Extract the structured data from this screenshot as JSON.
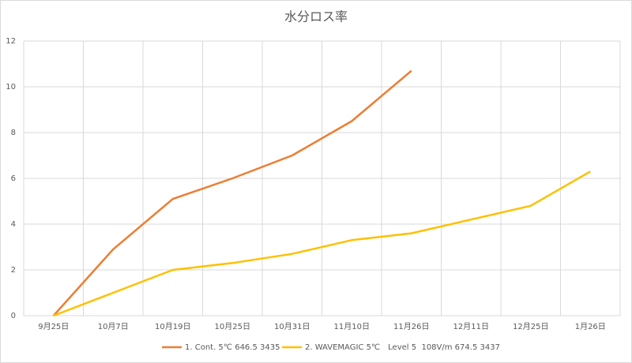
{
  "chart_data": {
    "type": "line",
    "title": "水分ロス率",
    "categories": [
      "9月25日",
      "10月7日",
      "10月19日",
      "10月25日",
      "10月31日",
      "11月10日",
      "11月26日",
      "12月11日",
      "12月25日",
      "1月26日"
    ],
    "series": [
      {
        "name": "1. Cont. 5℃ 646.5 3435",
        "color": "#ed7d31",
        "values": [
          0,
          2.9,
          5.1,
          6.0,
          7.0,
          8.5,
          10.7,
          null,
          null,
          null
        ]
      },
      {
        "name": "2. WAVEMAGIC 5℃　Level 5  108V/m 674.5 3437",
        "color": "#ffc000",
        "values": [
          0,
          1.0,
          2.0,
          2.3,
          2.7,
          3.3,
          3.6,
          4.2,
          4.8,
          6.3
        ]
      }
    ],
    "ylim": [
      0,
      12
    ],
    "yticks": [
      0,
      2,
      4,
      6,
      8,
      10,
      12
    ],
    "grid": true,
    "legend": "bottom"
  }
}
